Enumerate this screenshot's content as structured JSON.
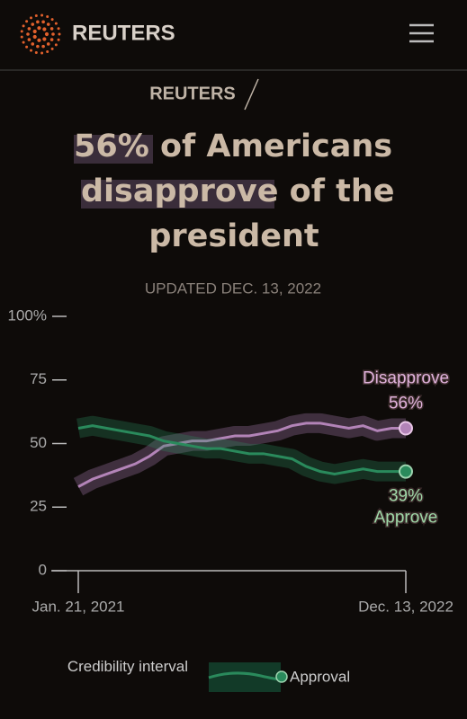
{
  "header": {
    "brand": "REUTERS",
    "sub_brand": "REUTERS"
  },
  "chart_data": {
    "type": "line",
    "title_parts": [
      "56%",
      " of Americans",
      "disapprove",
      " of the",
      "president"
    ],
    "subtitle": "UPDATED DEC. 13, 2022",
    "categories": [
      "Jan. 21, 2021",
      null,
      null,
      null,
      null,
      null,
      null,
      null,
      null,
      null,
      null,
      null,
      null,
      null,
      null,
      null,
      null,
      null,
      null,
      null,
      null,
      null,
      null,
      "Dec. 13, 2022"
    ],
    "series": [
      {
        "name": "Disapprove",
        "color": "#b384b8",
        "values": [
          33,
          36,
          38,
          40,
          42,
          45,
          49,
          50,
          51,
          51,
          52,
          53,
          53,
          54,
          55,
          57,
          58,
          58,
          57,
          56,
          57,
          55,
          56,
          56
        ],
        "value_labels": [
          null,
          null,
          null,
          null,
          null,
          null,
          null,
          null,
          null,
          null,
          null,
          null,
          null,
          null,
          null,
          null,
          null,
          null,
          null,
          null,
          null,
          null,
          null,
          "56%"
        ]
      },
      {
        "name": "Approve",
        "color": "#2a8a5c",
        "values": [
          56,
          57,
          56,
          55,
          54,
          53,
          51,
          50,
          49,
          48,
          48,
          47,
          46,
          46,
          45,
          44,
          41,
          39,
          38,
          39,
          40,
          39,
          39,
          39
        ],
        "value_labels": [
          null,
          null,
          null,
          null,
          null,
          null,
          null,
          null,
          null,
          null,
          null,
          null,
          null,
          null,
          null,
          null,
          null,
          null,
          null,
          null,
          null,
          null,
          null,
          "39%"
        ]
      }
    ],
    "ylim": [
      0,
      100
    ],
    "yticks": [
      0,
      25,
      50,
      75,
      {
        "value": 100,
        "label": "100%"
      }
    ],
    "grid": false,
    "legend": {
      "band": "Credibility interval",
      "line": "Approval"
    }
  }
}
